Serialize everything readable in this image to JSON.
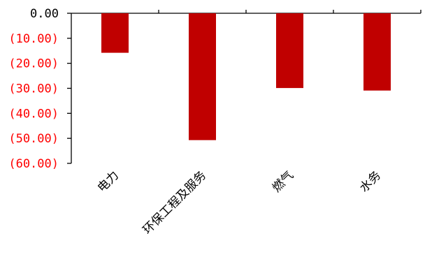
{
  "chart_data": {
    "type": "bar",
    "categories": [
      "电力",
      "环保工程及服务",
      "燃气",
      "水务"
    ],
    "values": [
      -15.8,
      -50.7,
      -29.9,
      -30.9
    ],
    "ylim": [
      -60,
      0
    ],
    "yticks": [
      0,
      -10,
      -20,
      -30,
      -40,
      -50,
      -60
    ],
    "ytick_labels": [
      "0.00",
      "(10.00)",
      "(20.00)",
      "(30.00)",
      "(40.00)",
      "(50.00)",
      "(60.00)"
    ],
    "title": "",
    "xlabel": "",
    "ylabel": "",
    "grid": false,
    "colors": {
      "bar": "#c00000",
      "negative_tick_label": "#ff0000",
      "zero_tick_label": "#000000",
      "axis": "#000000"
    }
  }
}
